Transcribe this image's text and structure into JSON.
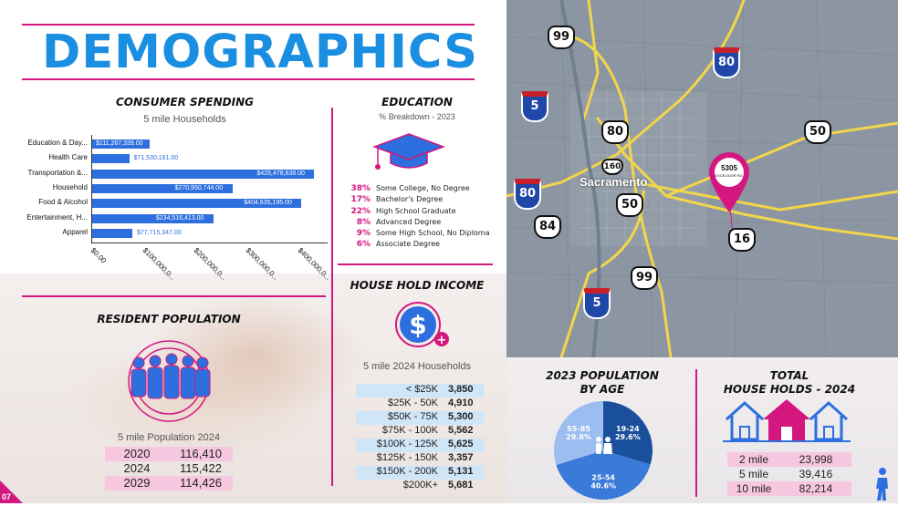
{
  "title": "DEMOGRAPHICS",
  "page_number": "07",
  "consumer_spending": {
    "heading": "CONSUMER SPENDING",
    "subtitle": "5 mile Households",
    "chart_data": {
      "type": "bar",
      "orientation": "horizontal",
      "categories": [
        "Education & Day...",
        "Health Care",
        "Transportation &...",
        "Household",
        "Food & Alcohol",
        "Entertainment, H...",
        "Apparel"
      ],
      "values": [
        111267339,
        71530181,
        429478638,
        270950744,
        404635195,
        234516413,
        77715347
      ],
      "value_labels": [
        "$111,267,339.00",
        "$71,530,181.00",
        "$429,478,638.00",
        "$270,950,744.00",
        "$404,635,195.00",
        "$234,516,413.00",
        "$77,715,347.00"
      ],
      "xlim": [
        0,
        450000000
      ],
      "x_ticks": [
        0,
        100000000,
        200000000,
        300000000,
        400000000
      ],
      "x_tick_labels": [
        "$0.00",
        "$100,000,0...",
        "$200,000,0...",
        "$300,000,0...",
        "$400,000,0..."
      ],
      "bar_color": "#2d6fde"
    }
  },
  "education": {
    "heading": "EDUCATION",
    "subtitle": "% Breakdown - 2023",
    "rows": [
      {
        "pct": "38%",
        "label": "Some College, No Degree"
      },
      {
        "pct": "17%",
        "label": "Bachelor's Degree"
      },
      {
        "pct": "22%",
        "label": "High School Graduate"
      },
      {
        "pct": "8%",
        "label": "Advanced Degree"
      },
      {
        "pct": "9%",
        "label": "Some High School, No Diploma"
      },
      {
        "pct": "6%",
        "label": "Associate Degree"
      }
    ]
  },
  "household_income": {
    "heading": "HOUSE HOLD INCOME",
    "subtitle": "5 mile 2024 Households",
    "rows": [
      {
        "range": "< $25K",
        "value": "3,850"
      },
      {
        "range": "$25K - 50K",
        "value": "4,910"
      },
      {
        "range": "$50K - 75K",
        "value": "5,300"
      },
      {
        "range": "$75K - 100K",
        "value": "5,562"
      },
      {
        "range": "$100K - 125K",
        "value": "5,625"
      },
      {
        "range": "$125K - 150K",
        "value": "3,357"
      },
      {
        "range": "$150K - 200K",
        "value": "5,131"
      },
      {
        "range": "$200K+",
        "value": "5,681"
      }
    ]
  },
  "resident_population": {
    "heading": "RESIDENT POPULATION",
    "subtitle": "5 mile Population 2024",
    "rows": [
      {
        "year": "2020",
        "value": "116,410"
      },
      {
        "year": "2024",
        "value": "115,422"
      },
      {
        "year": "2029",
        "value": "114,426"
      }
    ]
  },
  "population_by_age": {
    "heading_line1": "2023 POPULATION",
    "heading_line2": "BY AGE",
    "chart_data": {
      "type": "pie",
      "slices": [
        {
          "label": "19-24",
          "pct_label": "29.6%",
          "value": 29.6,
          "color": "#1a4f9c"
        },
        {
          "label": "25-54",
          "pct_label": "40.6%",
          "value": 40.6,
          "color": "#3a7ad8"
        },
        {
          "label": "55-85",
          "pct_label": "29.8%",
          "value": 29.8,
          "color": "#9cbdf0"
        }
      ]
    }
  },
  "total_households": {
    "heading_line1": "TOTAL",
    "heading_line2": "HOUSE HOLDS - 2024",
    "rows": [
      {
        "radius": "2 mile",
        "value": "23,998"
      },
      {
        "radius": "5 mile",
        "value": "39,416"
      },
      {
        "radius": "10 mile",
        "value": "82,214"
      }
    ]
  },
  "map": {
    "pin_label": "5305",
    "pin_sub": "EXCELSIOR RD.",
    "city_label": "Sacramento",
    "shields": [
      "99",
      "80",
      "5",
      "80",
      "50",
      "160",
      "80",
      "50",
      "84",
      "16",
      "99",
      "5"
    ],
    "colors": {
      "road": "#f2d54a",
      "base": "#8c96a2",
      "pin": "#d4177f"
    }
  },
  "colors": {
    "accent": "#d4177f",
    "title_blue": "#1a8ee0",
    "bar": "#2d6fde",
    "income_highlight": "#cfe6f8",
    "pop_highlight": "#f7c6df"
  }
}
